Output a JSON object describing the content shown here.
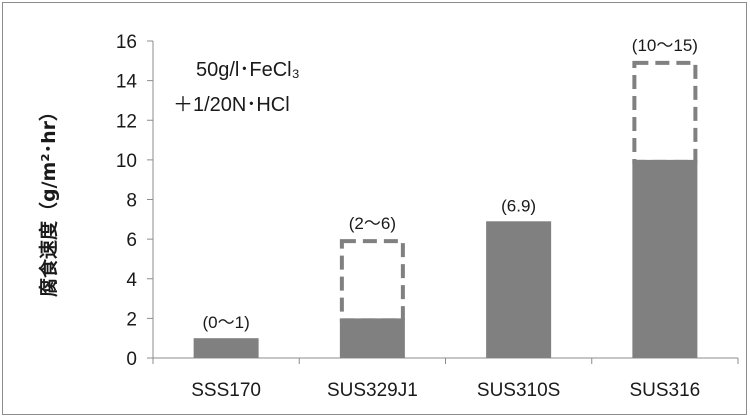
{
  "chart_data": {
    "type": "bar",
    "title": "",
    "xlabel": "",
    "ylabel": "腐食速度（g/m²･hr）",
    "ylim": [
      0,
      16
    ],
    "yticks": [
      0,
      2,
      4,
      6,
      8,
      10,
      12,
      14,
      16
    ],
    "grid": false,
    "legend": "none",
    "annotation": [
      "50g/l･FeCl₃",
      "＋1/20N･HCl"
    ],
    "categories": [
      "SSS170",
      "SUS329J1",
      "SUS310S",
      "SUS316"
    ],
    "series": [
      {
        "values": [
          1,
          2,
          6.9,
          10
        ]
      },
      {
        "values": [
          1,
          6,
          6.9,
          15
        ]
      }
    ],
    "data_labels": [
      "(0〜1)",
      "(2〜6)",
      "(6.9)",
      "(10〜15)"
    ],
    "colors": {
      "bar": "#808080",
      "range_outline": "#808080",
      "axis": "#8c8c8c"
    }
  }
}
